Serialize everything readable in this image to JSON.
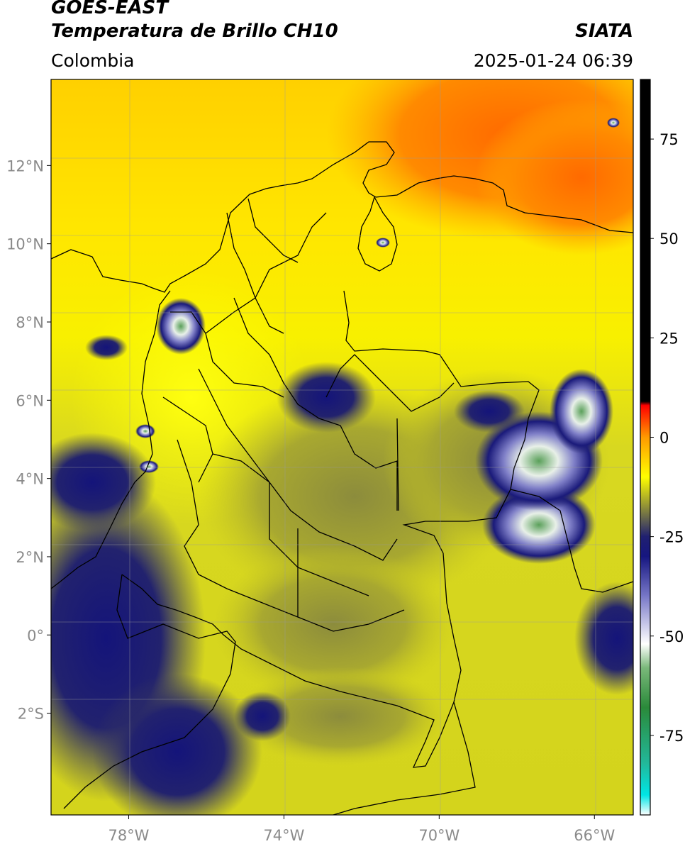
{
  "header": {
    "satellite": "GOES-EAST",
    "product": "Temperatura de Brillo CH10",
    "region": "Colombia",
    "agency": "SIATA",
    "datetime": "2025-01-24 06:39"
  },
  "map": {
    "lon_range": [
      -80,
      -65
    ],
    "lat_range": [
      -4.6,
      14.2
    ],
    "lon_ticks": [
      {
        "value": -78,
        "label": "78°W"
      },
      {
        "value": -74,
        "label": "74°W"
      },
      {
        "value": -70,
        "label": "70°W"
      },
      {
        "value": -66,
        "label": "66°W"
      }
    ],
    "lat_ticks": [
      {
        "value": 12,
        "label": "12°N"
      },
      {
        "value": 10,
        "label": "10°N"
      },
      {
        "value": 8,
        "label": "8°N"
      },
      {
        "value": 6,
        "label": "6°N"
      },
      {
        "value": 4,
        "label": "4°N"
      },
      {
        "value": 2,
        "label": "2°N"
      },
      {
        "value": 0,
        "label": "0°"
      },
      {
        "value": -2,
        "label": "2°S"
      }
    ],
    "gridlines": true
  },
  "colorbar": {
    "range": [
      -95,
      90
    ],
    "ticks": [
      {
        "value": 75,
        "label": "75"
      },
      {
        "value": 50,
        "label": "50"
      },
      {
        "value": 25,
        "label": "25"
      },
      {
        "value": 0,
        "label": "0"
      },
      {
        "value": -25,
        "label": "-25"
      },
      {
        "value": -50,
        "label": "-50"
      },
      {
        "value": -75,
        "label": "-75"
      }
    ],
    "stops": [
      {
        "value": -95,
        "color": "#ffffff"
      },
      {
        "value": -90,
        "color": "#00e5e5"
      },
      {
        "value": -82,
        "color": "#22b89a"
      },
      {
        "value": -68,
        "color": "#2a8a3a"
      },
      {
        "value": -58,
        "color": "#7ab87a"
      },
      {
        "value": -52,
        "color": "#ffffff"
      },
      {
        "value": -40,
        "color": "#7878c8"
      },
      {
        "value": -30,
        "color": "#161680"
      },
      {
        "value": -25,
        "color": "#202070"
      },
      {
        "value": -20,
        "color": "#6a6a4a"
      },
      {
        "value": -10,
        "color": "#ffff00"
      },
      {
        "value": 0,
        "color": "#ff9a00"
      },
      {
        "value": 8,
        "color": "#ff0000"
      },
      {
        "value": 9,
        "color": "#000000"
      },
      {
        "value": 90,
        "color": "#000000"
      }
    ]
  }
}
